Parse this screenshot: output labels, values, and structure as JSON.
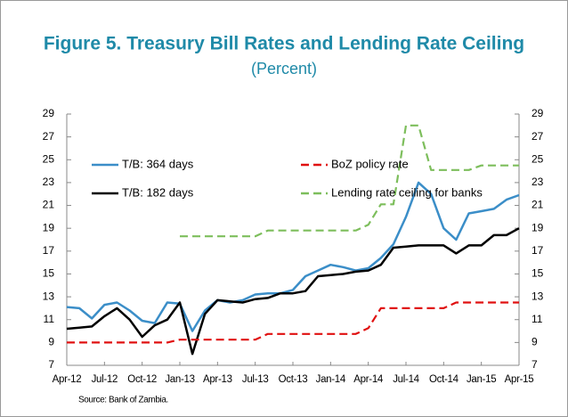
{
  "chart_data": {
    "type": "line",
    "title": "Figure 5.  Treasury Bill Rates and Lending Rate Ceiling",
    "subtitle": "(Percent)",
    "source": "Source: Bank of Zambia.",
    "categories": [
      "Apr-12",
      null,
      null,
      "Jul-12",
      null,
      null,
      "Oct-12",
      null,
      null,
      "Jan-13",
      null,
      null,
      "Apr-13",
      null,
      null,
      "Jul-13",
      null,
      null,
      "Oct-13",
      null,
      null,
      "Jan-14",
      null,
      null,
      "Apr-14",
      null,
      null,
      "Jul-14",
      null,
      null,
      "Oct-14",
      null,
      null,
      "Jan-15",
      null,
      null,
      "Apr-15"
    ],
    "series": [
      {
        "name": "T/B: 364 days",
        "color": "#3b8ec8",
        "values": [
          12.1,
          12.0,
          11.1,
          12.3,
          12.5,
          11.8,
          10.9,
          10.7,
          12.5,
          12.4,
          10.0,
          11.8,
          12.7,
          12.5,
          12.7,
          13.2,
          13.3,
          13.3,
          13.6,
          14.8,
          15.3,
          15.8,
          15.6,
          15.3,
          15.5,
          16.4,
          17.6,
          20.0,
          23.0,
          22.0,
          19.0,
          18.0,
          20.3,
          20.5,
          20.7,
          21.5,
          21.9
        ]
      },
      {
        "name": "T/B: 182 days",
        "color": "#000000",
        "values": [
          10.2,
          10.3,
          10.4,
          11.3,
          12.0,
          11.0,
          9.5,
          10.5,
          11.0,
          12.5,
          8.0,
          11.5,
          12.7,
          12.6,
          12.5,
          12.8,
          12.9,
          13.3,
          13.3,
          13.5,
          14.8,
          14.9,
          15.0,
          15.2,
          15.3,
          15.8,
          17.3,
          17.4,
          17.5,
          17.5,
          17.5,
          16.8,
          17.5,
          17.5,
          18.4,
          18.4,
          19.0
        ]
      },
      {
        "name": "BoZ policy rate",
        "color": "#e01010",
        "dashed": true,
        "values": [
          9.0,
          9.0,
          9.0,
          9.0,
          9.0,
          9.0,
          9.0,
          9.0,
          9.0,
          9.25,
          9.25,
          9.25,
          9.25,
          9.25,
          9.25,
          9.25,
          9.75,
          9.75,
          9.75,
          9.75,
          9.75,
          9.75,
          9.75,
          9.75,
          10.25,
          12.0,
          12.0,
          12.0,
          12.0,
          12.0,
          12.0,
          12.5,
          12.5,
          12.5,
          12.5,
          12.5,
          12.5
        ]
      },
      {
        "name": "Lending rate ceiling for banks",
        "color": "#7dbe5c",
        "dashed": true,
        "values": [
          null,
          null,
          null,
          null,
          null,
          null,
          null,
          null,
          null,
          18.3,
          18.3,
          18.3,
          18.3,
          18.3,
          18.3,
          18.3,
          18.8,
          18.8,
          18.8,
          18.8,
          18.8,
          18.8,
          18.8,
          18.8,
          19.3,
          21.1,
          21.1,
          28.0,
          28.0,
          24.1,
          24.1,
          24.1,
          24.1,
          24.5,
          24.5,
          24.5,
          24.5
        ]
      }
    ],
    "ylim": [
      7,
      29
    ],
    "yticks": [
      7,
      9,
      11,
      13,
      15,
      17,
      19,
      21,
      23,
      25,
      27,
      29
    ],
    "y2lim": [
      7,
      29
    ],
    "y2ticks": [
      7,
      9,
      11,
      13,
      15,
      17,
      19,
      21,
      23,
      25,
      27,
      29
    ],
    "grid": false
  }
}
